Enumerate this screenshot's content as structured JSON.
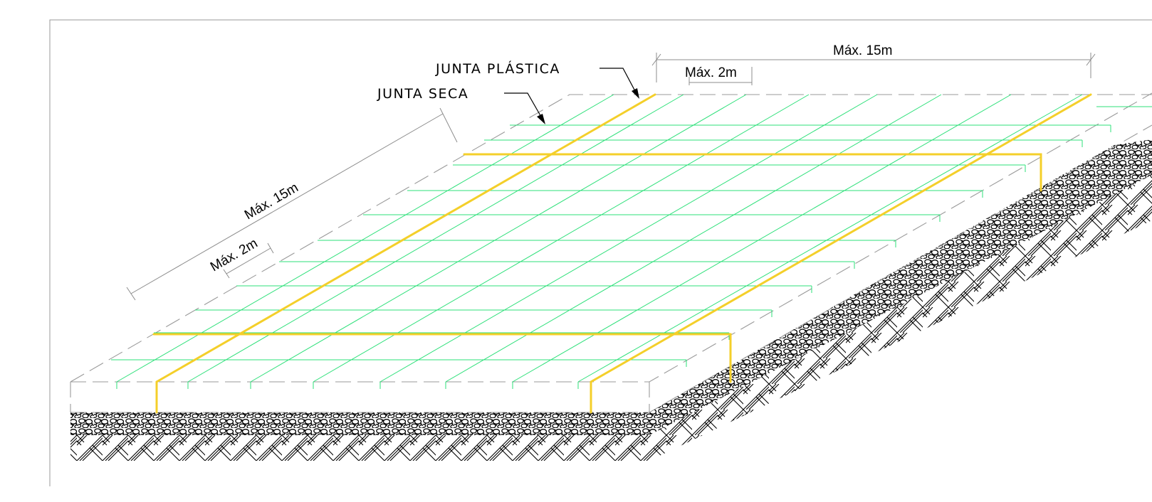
{
  "labels": {
    "plastic_joint": "JUNTA PLÁSTICA",
    "dry_joint": "JUNTA SECA"
  },
  "dimensions": {
    "top_long": "Máx. 15m",
    "top_short": "Máx. 2m",
    "left_long": "Máx. 15m",
    "left_short": "Máx. 2m"
  },
  "colors": {
    "grid_line": "#2ee07a",
    "plastic_joint": "#f4cf2a",
    "dashed_edge": "#9a9a9a",
    "dimension_line": "#8c8c8c",
    "text": "#000000"
  }
}
